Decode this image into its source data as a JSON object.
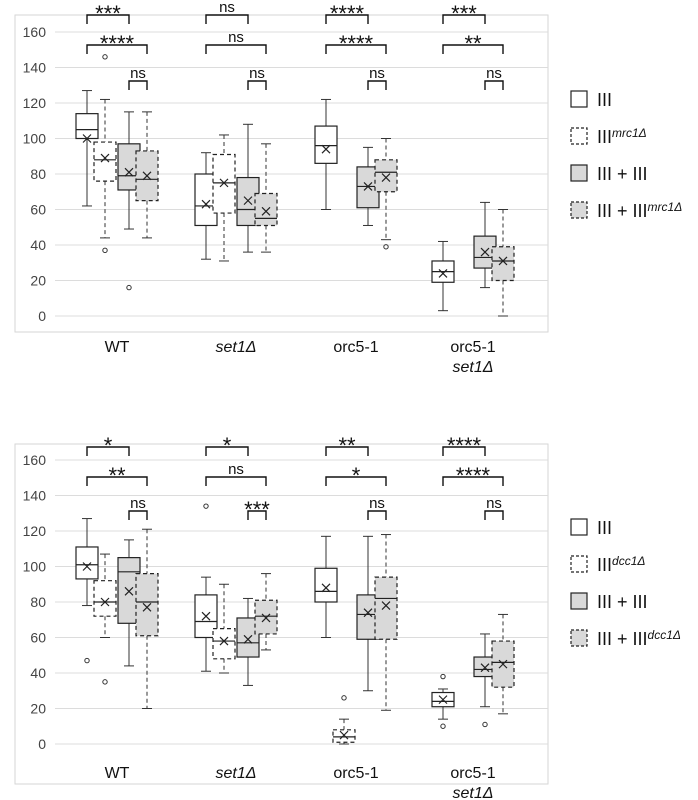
{
  "chart_data": [
    {
      "type": "box",
      "ylim": [
        0,
        160
      ],
      "yticks": [
        0,
        20,
        40,
        60,
        80,
        100,
        120,
        140,
        160
      ],
      "groups": [
        {
          "label": "WT",
          "label2": "",
          "italic": false
        },
        {
          "label": "set1Δ",
          "label2": "",
          "italic": true
        },
        {
          "label": "orc5-1",
          "label2": "",
          "italic": false
        },
        {
          "label": "orc5-1",
          "label2": "set1Δ",
          "italic": false
        }
      ],
      "legend": [
        {
          "text": "III",
          "sup": "",
          "fill": "white",
          "dashed": false
        },
        {
          "text": "III",
          "sup": "mrc1Δ",
          "fill": "white",
          "dashed": true
        },
        {
          "text": "III + III",
          "sup": "",
          "fill": "gray",
          "dashed": false
        },
        {
          "text": "III + III",
          "sup": "mrc1Δ",
          "fill": "gray",
          "dashed": true
        }
      ],
      "boxes": [
        {
          "g": 0,
          "s": 0,
          "wlo": 62,
          "q1": 100,
          "med": 105,
          "q3": 114,
          "whi": 127,
          "mean": 100,
          "out": []
        },
        {
          "g": 0,
          "s": 1,
          "wlo": 44,
          "q1": 76,
          "med": 88,
          "q3": 98,
          "whi": 122,
          "mean": 89,
          "out": [
            37,
            146
          ]
        },
        {
          "g": 0,
          "s": 2,
          "wlo": 49,
          "q1": 71,
          "med": 79,
          "q3": 97,
          "whi": 115,
          "mean": 81,
          "out": [
            16
          ]
        },
        {
          "g": 0,
          "s": 3,
          "wlo": 44,
          "q1": 65,
          "med": 77,
          "q3": 93,
          "whi": 115,
          "mean": 79,
          "out": []
        },
        {
          "g": 1,
          "s": 0,
          "wlo": 32,
          "q1": 51,
          "med": 62,
          "q3": 80,
          "whi": 92,
          "mean": 63,
          "out": []
        },
        {
          "g": 1,
          "s": 1,
          "wlo": 31,
          "q1": 58,
          "med": 75,
          "q3": 91,
          "whi": 102,
          "mean": 75,
          "out": []
        },
        {
          "g": 1,
          "s": 2,
          "wlo": 36,
          "q1": 51,
          "med": 60,
          "q3": 78,
          "whi": 108,
          "mean": 65,
          "out": []
        },
        {
          "g": 1,
          "s": 3,
          "wlo": 36,
          "q1": 51,
          "med": 55,
          "q3": 69,
          "whi": 97,
          "mean": 59,
          "out": []
        },
        {
          "g": 2,
          "s": 0,
          "wlo": 60,
          "q1": 86,
          "med": 96,
          "q3": 107,
          "whi": 122,
          "mean": 94,
          "out": []
        },
        {
          "g": 2,
          "s": 2,
          "wlo": 51,
          "q1": 61,
          "med": 73,
          "q3": 84,
          "whi": 95,
          "mean": 73,
          "out": []
        },
        {
          "g": 2,
          "s": 3,
          "wlo": 43,
          "q1": 70,
          "med": 81,
          "q3": 88,
          "whi": 100,
          "mean": 78,
          "out": [
            39
          ]
        },
        {
          "g": 3,
          "s": 0,
          "wlo": 3,
          "q1": 19,
          "med": 25,
          "q3": 31,
          "whi": 42,
          "mean": 24,
          "out": []
        },
        {
          "g": 3,
          "s": 2,
          "wlo": 16,
          "q1": 27,
          "med": 33,
          "q3": 45,
          "whi": 64,
          "mean": 36,
          "out": []
        },
        {
          "g": 3,
          "s": 3,
          "wlo": 0,
          "q1": 20,
          "med": 31,
          "q3": 39,
          "whi": 60,
          "mean": 31,
          "out": []
        }
      ],
      "sigs": [
        {
          "g": 0,
          "a": 0,
          "b": 2,
          "lvl": 0,
          "text": "***"
        },
        {
          "g": 0,
          "a": 0,
          "b": 3,
          "lvl": 1,
          "text": "****"
        },
        {
          "g": 0,
          "a": 2,
          "b": 3,
          "lvl": 2,
          "text": "ns"
        },
        {
          "g": 1,
          "a": 0,
          "b": 2,
          "lvl": 0,
          "text": "ns"
        },
        {
          "g": 1,
          "a": 0,
          "b": 3,
          "lvl": 1,
          "text": "ns"
        },
        {
          "g": 1,
          "a": 2,
          "b": 3,
          "lvl": 2,
          "text": "ns"
        },
        {
          "g": 2,
          "a": 0,
          "b": 2,
          "lvl": 0,
          "text": "****"
        },
        {
          "g": 2,
          "a": 0,
          "b": 3,
          "lvl": 1,
          "text": "****"
        },
        {
          "g": 2,
          "a": 2,
          "b": 3,
          "lvl": 2,
          "text": "ns"
        },
        {
          "g": 3,
          "a": 0,
          "b": 2,
          "lvl": 0,
          "text": "***"
        },
        {
          "g": 3,
          "a": 0,
          "b": 3,
          "lvl": 1,
          "text": "**"
        },
        {
          "g": 3,
          "a": 2,
          "b": 3,
          "lvl": 2,
          "text": "ns"
        }
      ]
    },
    {
      "type": "box",
      "ylim": [
        0,
        160
      ],
      "yticks": [
        0,
        20,
        40,
        60,
        80,
        100,
        120,
        140,
        160
      ],
      "groups": [
        {
          "label": "WT",
          "label2": "",
          "italic": false
        },
        {
          "label": "set1Δ",
          "label2": "",
          "italic": true
        },
        {
          "label": "orc5-1",
          "label2": "",
          "italic": false
        },
        {
          "label": "orc5-1",
          "label2": "set1Δ",
          "italic": false
        }
      ],
      "legend": [
        {
          "text": "III",
          "sup": "",
          "fill": "white",
          "dashed": false
        },
        {
          "text": "III",
          "sup": "dcc1Δ",
          "fill": "white",
          "dashed": true
        },
        {
          "text": "III + III",
          "sup": "",
          "fill": "gray",
          "dashed": false
        },
        {
          "text": "III + III",
          "sup": "dcc1Δ",
          "fill": "gray",
          "dashed": true
        }
      ],
      "boxes": [
        {
          "g": 0,
          "s": 0,
          "wlo": 78,
          "q1": 93,
          "med": 101,
          "q3": 111,
          "whi": 127,
          "mean": 100,
          "out": [
            47
          ]
        },
        {
          "g": 0,
          "s": 1,
          "wlo": 60,
          "q1": 72,
          "med": 80,
          "q3": 92,
          "whi": 107,
          "mean": 80,
          "out": [
            35
          ]
        },
        {
          "g": 0,
          "s": 2,
          "wlo": 44,
          "q1": 68,
          "med": 97,
          "q3": 105,
          "whi": 115,
          "mean": 86,
          "out": []
        },
        {
          "g": 0,
          "s": 3,
          "wlo": 20,
          "q1": 61,
          "med": 80,
          "q3": 96,
          "whi": 121,
          "mean": 77,
          "out": []
        },
        {
          "g": 1,
          "s": 0,
          "wlo": 41,
          "q1": 60,
          "med": 69,
          "q3": 84,
          "whi": 94,
          "mean": 72,
          "out": [
            134
          ]
        },
        {
          "g": 1,
          "s": 1,
          "wlo": 40,
          "q1": 48,
          "med": 58,
          "q3": 65,
          "whi": 90,
          "mean": 58,
          "out": []
        },
        {
          "g": 1,
          "s": 2,
          "wlo": 33,
          "q1": 49,
          "med": 57,
          "q3": 71,
          "whi": 82,
          "mean": 59,
          "out": []
        },
        {
          "g": 1,
          "s": 3,
          "wlo": 53,
          "q1": 62,
          "med": 72,
          "q3": 81,
          "whi": 96,
          "mean": 71,
          "out": []
        },
        {
          "g": 2,
          "s": 0,
          "wlo": 60,
          "q1": 80,
          "med": 86,
          "q3": 99,
          "whi": 117,
          "mean": 88,
          "out": []
        },
        {
          "g": 2,
          "s": 1,
          "wlo": 0,
          "q1": 1,
          "med": 4,
          "q3": 8,
          "whi": 14,
          "mean": 5,
          "out": [
            26
          ]
        },
        {
          "g": 2,
          "s": 2,
          "wlo": 30,
          "q1": 59,
          "med": 73,
          "q3": 84,
          "whi": 117,
          "mean": 74,
          "out": []
        },
        {
          "g": 2,
          "s": 3,
          "wlo": 19,
          "q1": 59,
          "med": 82,
          "q3": 94,
          "whi": 118,
          "mean": 78,
          "out": []
        },
        {
          "g": 3,
          "s": 0,
          "wlo": 14,
          "q1": 21,
          "med": 24,
          "q3": 29,
          "whi": 31,
          "mean": 25,
          "out": [
            10,
            38
          ]
        },
        {
          "g": 3,
          "s": 2,
          "wlo": 21,
          "q1": 38,
          "med": 42,
          "q3": 49,
          "whi": 62,
          "mean": 43,
          "out": [
            11
          ]
        },
        {
          "g": 3,
          "s": 3,
          "wlo": 17,
          "q1": 32,
          "med": 46,
          "q3": 58,
          "whi": 73,
          "mean": 45,
          "out": []
        }
      ],
      "sigs": [
        {
          "g": 0,
          "a": 0,
          "b": 2,
          "lvl": 0,
          "text": "*"
        },
        {
          "g": 0,
          "a": 0,
          "b": 3,
          "lvl": 1,
          "text": "**"
        },
        {
          "g": 0,
          "a": 2,
          "b": 3,
          "lvl": 2,
          "text": "ns"
        },
        {
          "g": 1,
          "a": 0,
          "b": 2,
          "lvl": 0,
          "text": "*"
        },
        {
          "g": 1,
          "a": 0,
          "b": 3,
          "lvl": 1,
          "text": "ns"
        },
        {
          "g": 1,
          "a": 2,
          "b": 3,
          "lvl": 2,
          "text": "***"
        },
        {
          "g": 2,
          "a": 0,
          "b": 2,
          "lvl": 0,
          "text": "**"
        },
        {
          "g": 2,
          "a": 0,
          "b": 3,
          "lvl": 1,
          "text": "*"
        },
        {
          "g": 2,
          "a": 2,
          "b": 3,
          "lvl": 2,
          "text": "ns"
        },
        {
          "g": 3,
          "a": 0,
          "b": 2,
          "lvl": 0,
          "text": "****"
        },
        {
          "g": 3,
          "a": 0,
          "b": 3,
          "lvl": 1,
          "text": "****"
        },
        {
          "g": 3,
          "a": 2,
          "b": 3,
          "lvl": 2,
          "text": "ns"
        }
      ]
    }
  ]
}
